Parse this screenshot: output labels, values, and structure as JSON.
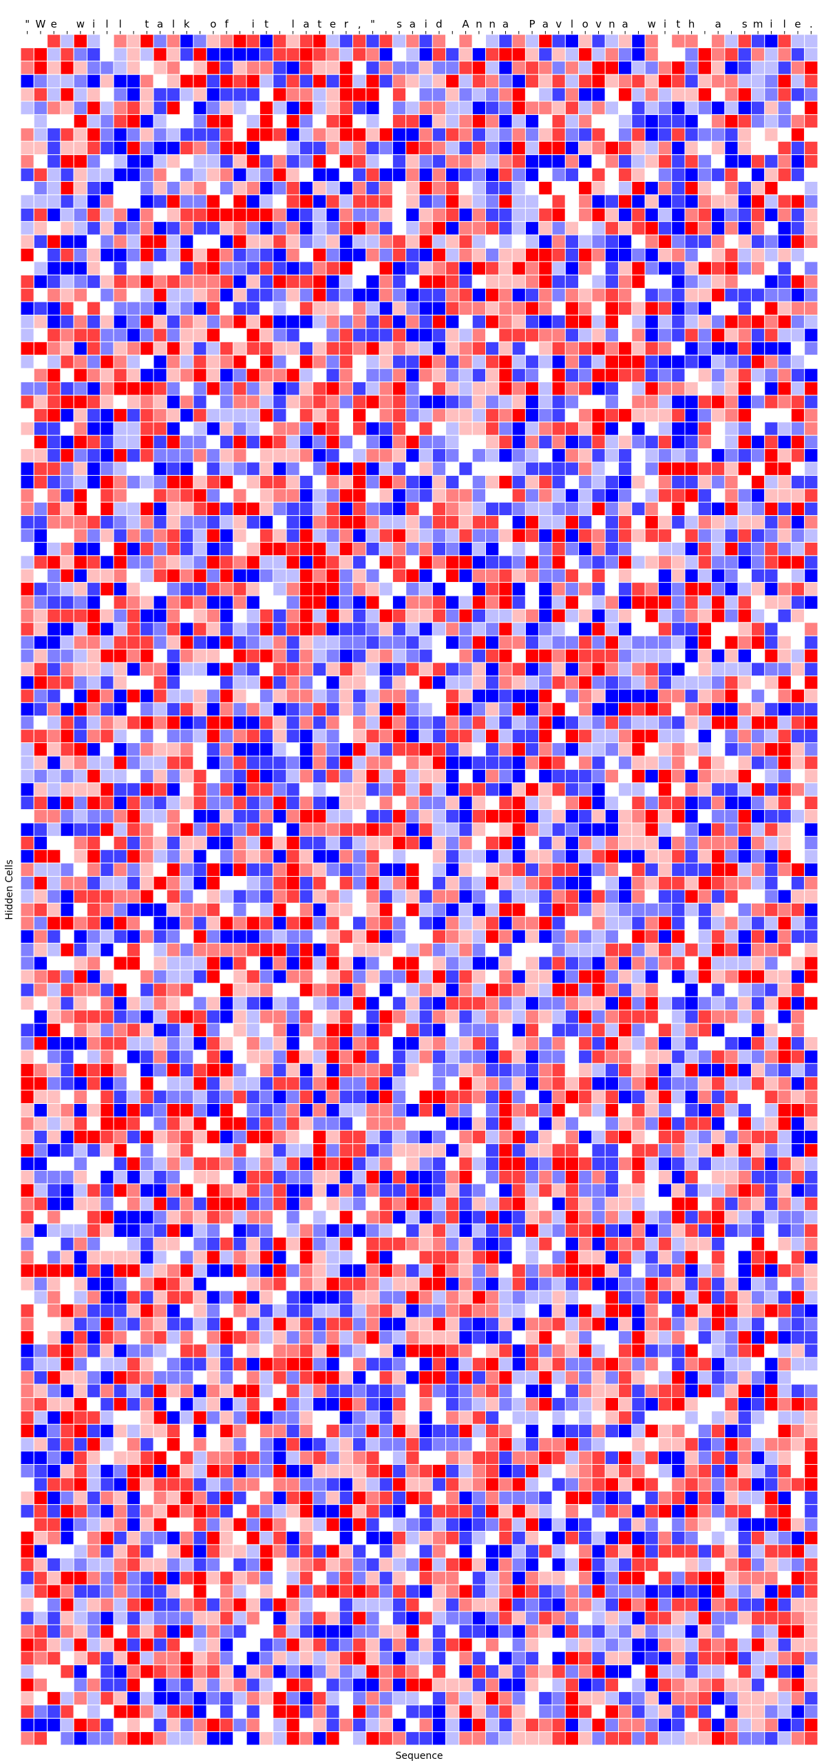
{
  "chart_data": {
    "type": "heatmap",
    "title": "",
    "xlabel": "Sequence",
    "ylabel": "Hidden Cells",
    "x_tick_labels": [
      "\"",
      "W",
      "e",
      " ",
      "w",
      "i",
      "l",
      "l",
      " ",
      "t",
      "a",
      "l",
      "k",
      " ",
      "o",
      "f",
      " ",
      "i",
      "t",
      " ",
      "l",
      "a",
      "t",
      "e",
      "r",
      ",",
      "\"",
      " ",
      "s",
      "a",
      "i",
      "d",
      " ",
      "A",
      "n",
      "n",
      "a",
      " ",
      "P",
      "a",
      "v",
      "l",
      "o",
      "v",
      "n",
      "a",
      " ",
      "w",
      "i",
      "t",
      "h",
      " ",
      "a",
      " ",
      "s",
      "m",
      "i",
      "l",
      "e",
      "."
    ],
    "x_tick_position": "top",
    "y_ticks_shown": false,
    "n_rows": 128,
    "n_cols": 60,
    "colormap": "bwr",
    "color_low": "#0000ff",
    "color_mid": "#ffffff",
    "color_high": "#ff0000",
    "value_range": [
      -1,
      1
    ],
    "levels": [
      -1,
      -0.75,
      -0.5,
      -0.25,
      0,
      0.25,
      0.5,
      0.75,
      1
    ],
    "cell_border_color": "#ffffff",
    "values_note": "Individual cell activations are not legible at this resolution; the grid shows a dense mix of all levels."
  }
}
